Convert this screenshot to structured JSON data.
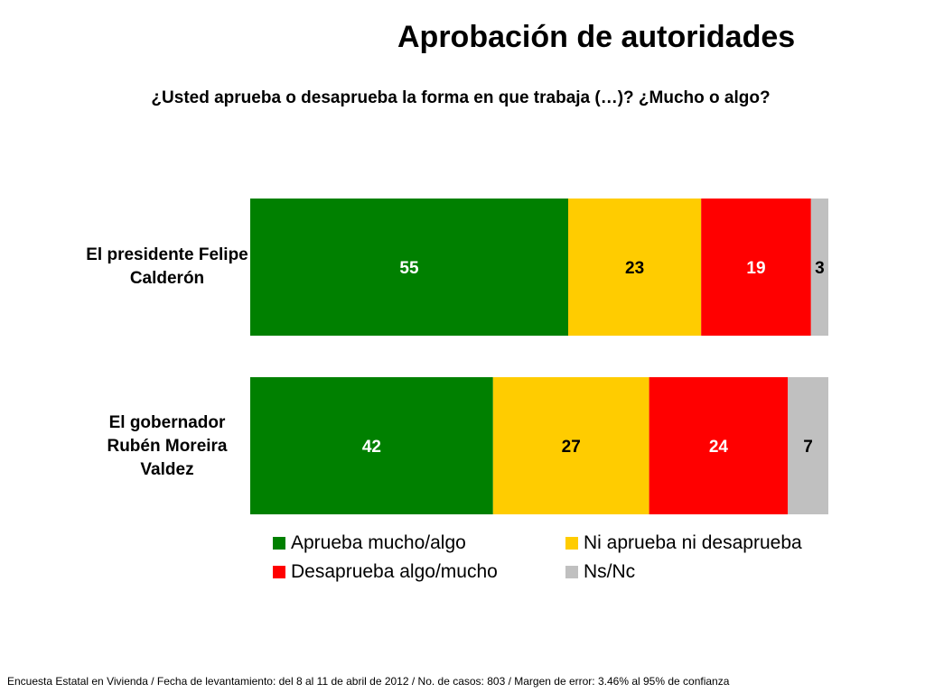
{
  "page": {
    "title": "Aprobación de autoridades",
    "subtitle": "¿Usted aprueba o desaprueba la forma en que trabaja (…)? ¿Mucho o algo?",
    "footer": "Encuesta Estatal en Vivienda / Fecha de levantamiento: del  8 al 11 de abril de 2012 / No. de casos: 803 / Margen de error: 3.46% al 95% de confianza"
  },
  "chart_data": {
    "type": "bar",
    "orientation": "horizontal",
    "stacked": true,
    "categories": [
      "El presidente Felipe Calderón",
      "El gobernador Rubén Moreira Valdez"
    ],
    "series": [
      {
        "name": "Aprueba mucho/algo",
        "values": [
          55,
          42
        ],
        "color": "#008000",
        "label_color": "#ffffff"
      },
      {
        "name": "Ni aprueba ni desaprueba",
        "values": [
          23,
          27
        ],
        "color": "#ffcc00",
        "label_color": "#000000"
      },
      {
        "name": "Desaprueba algo/mucho",
        "values": [
          19,
          24
        ],
        "color": "#ff0000",
        "label_color": "#ffffff"
      },
      {
        "name": "Ns/Nc",
        "values": [
          3,
          7
        ],
        "color": "#c0c0c0",
        "label_color": "#000000"
      }
    ],
    "xlim": [
      0,
      100
    ],
    "grid": false,
    "legend_position": "bottom"
  }
}
